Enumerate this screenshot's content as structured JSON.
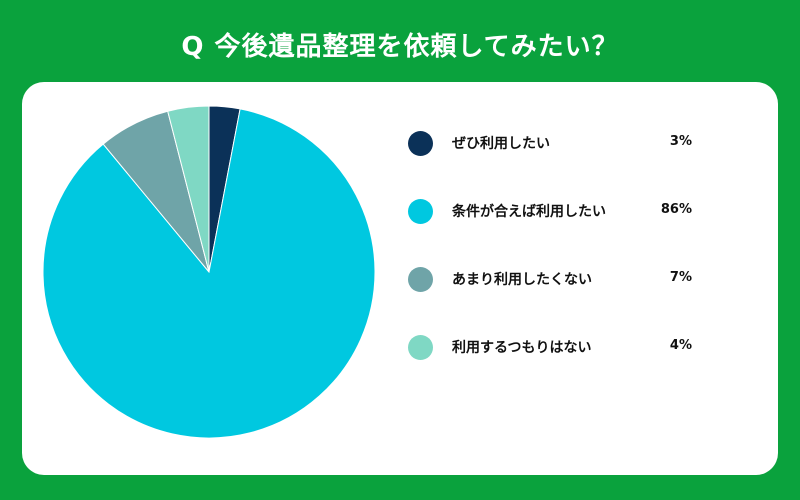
{
  "title": "Q 今後遺品整理を依頼してみたい？",
  "colors": {
    "background": "#0aa23d",
    "panel": "#ffffff"
  },
  "chart_data": {
    "type": "pie",
    "title": "Q 今後遺品整理を依頼してみたい？",
    "legend_position": "right",
    "slices": [
      {
        "label": "ぜひ利用したい",
        "value": 3,
        "value_label": "3%",
        "color": "#0b3158"
      },
      {
        "label": "条件が合えば利用したい",
        "value": 86,
        "value_label": "86%",
        "color": "#00c8e0"
      },
      {
        "label": "あまり利用したくない",
        "value": 7,
        "value_label": "7%",
        "color": "#6fa4a8"
      },
      {
        "label": "利用するつもりはない",
        "value": 4,
        "value_label": "4%",
        "color": "#7fd8c4"
      }
    ]
  }
}
